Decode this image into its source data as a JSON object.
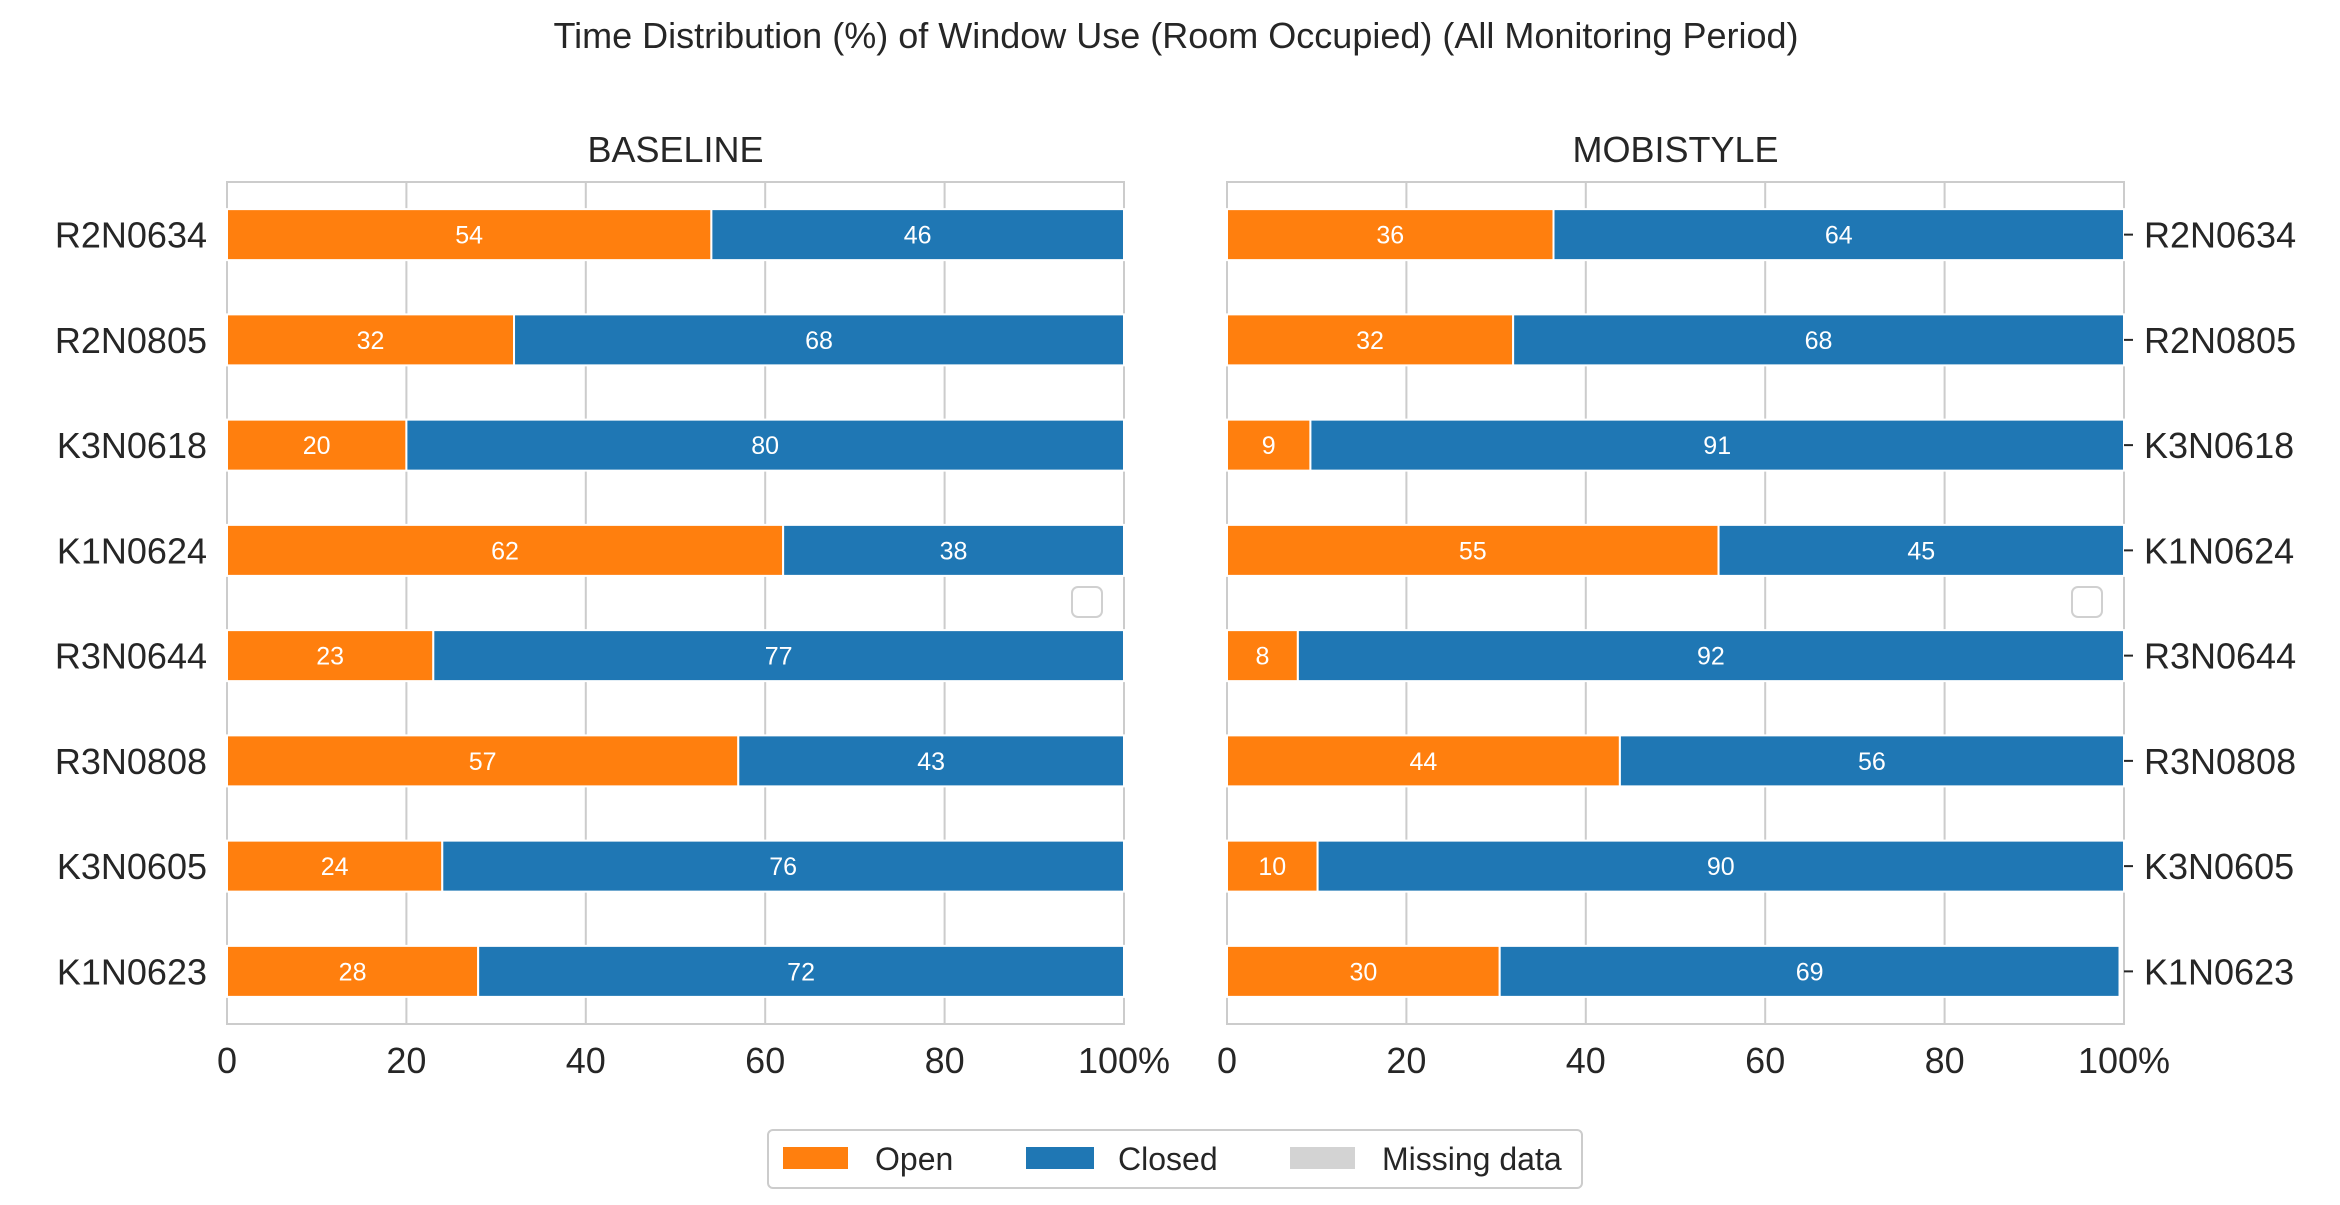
{
  "figure": {
    "title": "Time Distribution (%) of Window Use (Room Occupied) (All Monitoring Period)"
  },
  "legend": {
    "placement": "bottom-center",
    "entries": [
      {
        "label": "Open",
        "color": "#ff7f0e"
      },
      {
        "label": "Closed",
        "color": "#1f77b4"
      },
      {
        "label": "Missing data",
        "color": "#d3d3d3"
      }
    ]
  },
  "chart_data": [
    {
      "type": "bar",
      "orientation": "horizontal",
      "stacked": true,
      "title": "BASELINE",
      "ytick_side": "left",
      "xlim": [
        0,
        100
      ],
      "xticks": [
        "0",
        "20",
        "40",
        "60",
        "80",
        "100%"
      ],
      "grid": true,
      "categories": [
        "R2N0634",
        "R2N0805",
        "K3N0618",
        "K1N0624",
        "R3N0644",
        "R3N0808",
        "K3N0605",
        "K1N0623"
      ],
      "series": [
        {
          "name": "Open",
          "color": "#ff7f0e",
          "values": [
            54,
            32,
            20,
            62,
            23,
            57,
            24,
            28
          ]
        },
        {
          "name": "Closed",
          "color": "#1f77b4",
          "values": [
            46,
            68,
            80,
            38,
            77,
            43,
            76,
            72
          ]
        }
      ],
      "data_labels": {
        "Open": [
          "54",
          "32",
          "20",
          "62",
          "23",
          "57",
          "24",
          "28"
        ],
        "Closed": [
          "46",
          "68",
          "80",
          "38",
          "77",
          "43",
          "76",
          "72"
        ]
      }
    },
    {
      "type": "bar",
      "orientation": "horizontal",
      "stacked": true,
      "title": "MOBISTYLE",
      "ytick_side": "right",
      "xlim": [
        0,
        100
      ],
      "xticks": [
        "0",
        "20",
        "40",
        "60",
        "80",
        "100%"
      ],
      "grid": true,
      "categories": [
        "R2N0634",
        "R2N0805",
        "K3N0618",
        "K1N0624",
        "R3N0644",
        "R3N0808",
        "K3N0605",
        "K1N0623"
      ],
      "series": [
        {
          "name": "Open",
          "color": "#ff7f0e",
          "values": [
            36.4,
            31.9,
            9.3,
            54.8,
            7.9,
            43.8,
            10.1,
            30.4
          ]
        },
        {
          "name": "Closed",
          "color": "#1f77b4",
          "values": [
            63.6,
            68.1,
            90.7,
            45.2,
            92.1,
            56.2,
            89.9,
            69.1
          ]
        }
      ],
      "data_labels": {
        "Open": [
          "36",
          "32",
          "9",
          "55",
          "8",
          "44",
          "10",
          "30"
        ],
        "Closed": [
          "64",
          "68",
          "91",
          "45",
          "92",
          "56",
          "90",
          "69"
        ]
      }
    }
  ]
}
